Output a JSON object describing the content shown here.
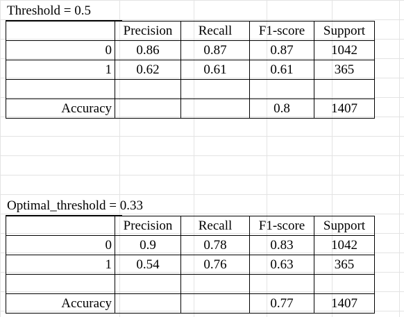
{
  "sections": [
    {
      "caption": "Threshold = 0.5",
      "headers": [
        "",
        "Precision",
        "Recall",
        "F1-score",
        "Support"
      ],
      "rows": [
        [
          "0",
          "0.86",
          "0.87",
          "0.87",
          "1042"
        ],
        [
          "1",
          "0.62",
          "0.61",
          "0.61",
          "365"
        ],
        [
          "",
          "",
          "",
          "",
          ""
        ],
        [
          "Accuracy",
          "",
          "",
          "0.8",
          "1407"
        ]
      ]
    },
    {
      "caption": "Optimal_threshold = 0.33",
      "headers": [
        "",
        "Precision",
        "Recall",
        "F1-score",
        "Support"
      ],
      "rows": [
        [
          "0",
          "0.9",
          "0.78",
          "0.83",
          "1042"
        ],
        [
          "1",
          "0.54",
          "0.76",
          "0.63",
          "365"
        ],
        [
          "",
          "",
          "",
          "",
          ""
        ],
        [
          "Accuracy",
          "",
          "",
          "0.77",
          "1407"
        ]
      ]
    }
  ]
}
